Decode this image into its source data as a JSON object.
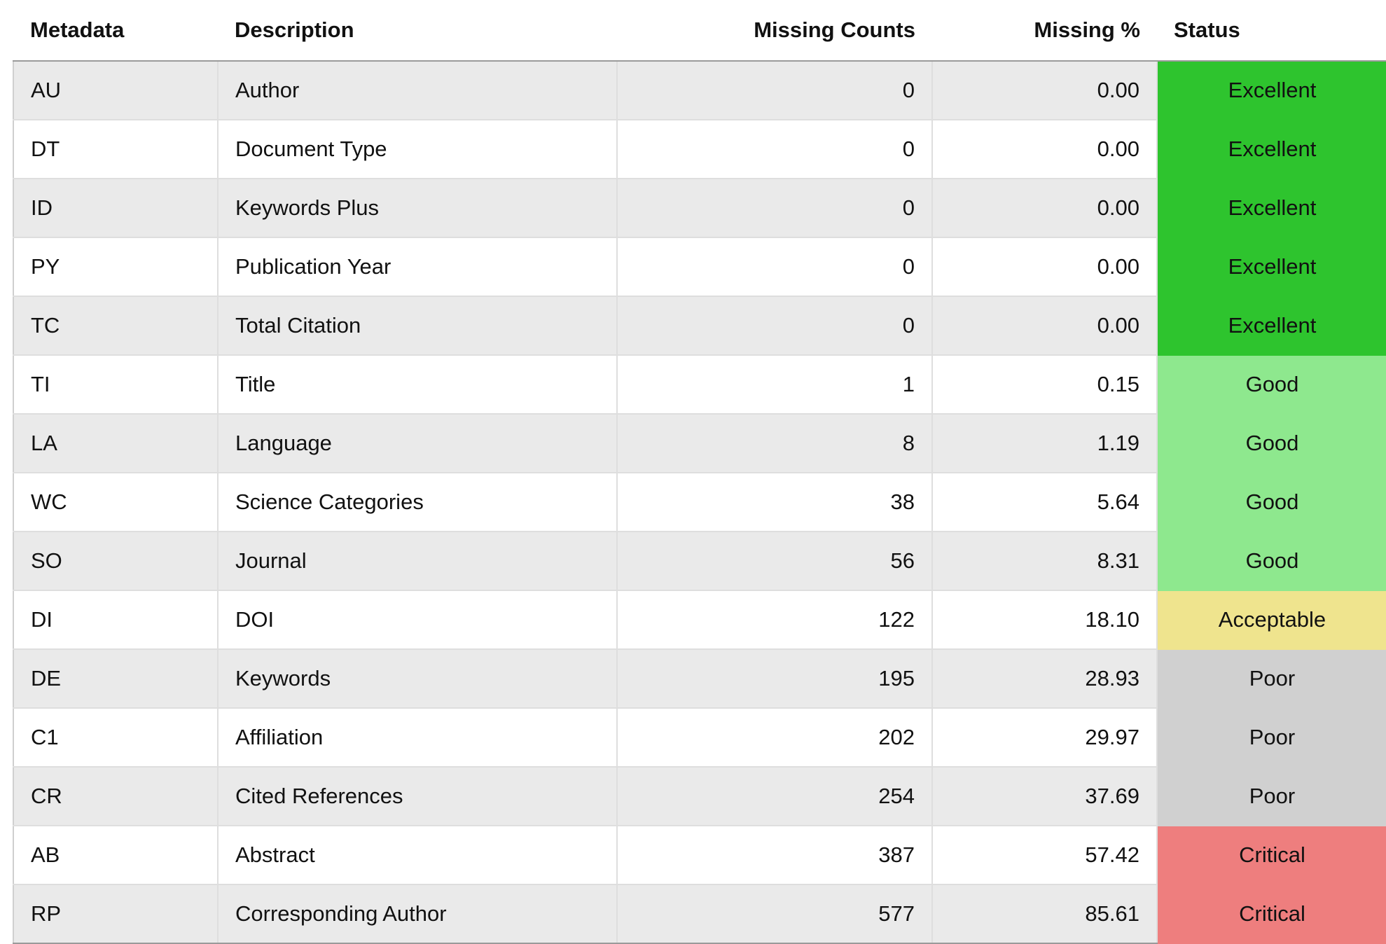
{
  "table": {
    "headers": {
      "metadata": "Metadata",
      "description": "Description",
      "missing_counts": "Missing Counts",
      "missing_pct": "Missing %",
      "status": "Status"
    },
    "status_colors": {
      "Excellent": "#2ec42e",
      "Good": "#8ee88e",
      "Acceptable": "#efe48e",
      "Poor": "#d0d0d0",
      "Critical": "#ee7e7e"
    },
    "rows": [
      {
        "metadata": "AU",
        "description": "Author",
        "missing_counts": "0",
        "missing_pct": "0.00",
        "status": "Excellent"
      },
      {
        "metadata": "DT",
        "description": "Document Type",
        "missing_counts": "0",
        "missing_pct": "0.00",
        "status": "Excellent"
      },
      {
        "metadata": "ID",
        "description": "Keywords Plus",
        "missing_counts": "0",
        "missing_pct": "0.00",
        "status": "Excellent"
      },
      {
        "metadata": "PY",
        "description": "Publication Year",
        "missing_counts": "0",
        "missing_pct": "0.00",
        "status": "Excellent"
      },
      {
        "metadata": "TC",
        "description": "Total Citation",
        "missing_counts": "0",
        "missing_pct": "0.00",
        "status": "Excellent"
      },
      {
        "metadata": "TI",
        "description": "Title",
        "missing_counts": "1",
        "missing_pct": "0.15",
        "status": "Good"
      },
      {
        "metadata": "LA",
        "description": "Language",
        "missing_counts": "8",
        "missing_pct": "1.19",
        "status": "Good"
      },
      {
        "metadata": "WC",
        "description": "Science Categories",
        "missing_counts": "38",
        "missing_pct": "5.64",
        "status": "Good"
      },
      {
        "metadata": "SO",
        "description": "Journal",
        "missing_counts": "56",
        "missing_pct": "8.31",
        "status": "Good"
      },
      {
        "metadata": "DI",
        "description": "DOI",
        "missing_counts": "122",
        "missing_pct": "18.10",
        "status": "Acceptable"
      },
      {
        "metadata": "DE",
        "description": "Keywords",
        "missing_counts": "195",
        "missing_pct": "28.93",
        "status": "Poor"
      },
      {
        "metadata": "C1",
        "description": "Affiliation",
        "missing_counts": "202",
        "missing_pct": "29.97",
        "status": "Poor"
      },
      {
        "metadata": "CR",
        "description": "Cited References",
        "missing_counts": "254",
        "missing_pct": "37.69",
        "status": "Poor"
      },
      {
        "metadata": "AB",
        "description": "Abstract",
        "missing_counts": "387",
        "missing_pct": "57.42",
        "status": "Critical"
      },
      {
        "metadata": "RP",
        "description": "Corresponding Author",
        "missing_counts": "577",
        "missing_pct": "85.61",
        "status": "Critical"
      }
    ]
  }
}
